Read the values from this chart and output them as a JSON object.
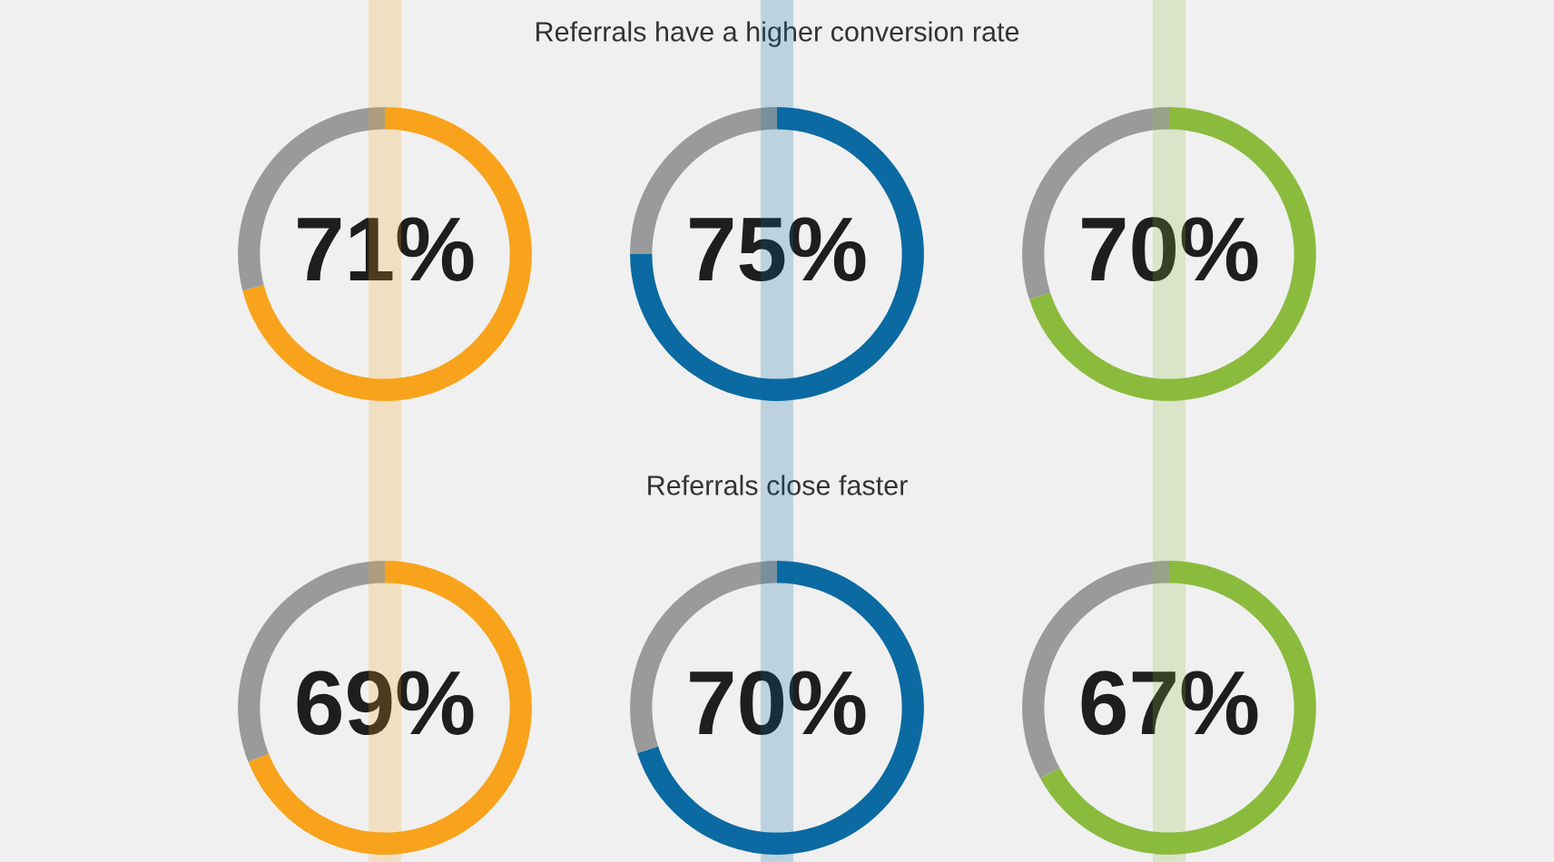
{
  "chart_data": [
    {
      "type": "donut",
      "categories": [
        null,
        null
      ],
      "values": [
        71,
        29
      ],
      "colors": [
        "#f8a31b",
        "#9a9a9a"
      ],
      "value_labels": [
        "71%",
        null
      ]
    },
    {
      "type": "donut",
      "title": "Referrals have a higher conversion rate",
      "categories": [
        null,
        null
      ],
      "values": [
        75,
        25
      ],
      "colors": [
        "#0b6aa2",
        "#9a9a9a"
      ],
      "value_labels": [
        "75%",
        null
      ]
    },
    {
      "type": "donut",
      "categories": [
        null,
        null
      ],
      "values": [
        70,
        30
      ],
      "colors": [
        "#8bbb3d",
        "#9a9a9a"
      ],
      "value_labels": [
        "70%",
        null
      ]
    },
    {
      "type": "donut",
      "categories": [
        null,
        null
      ],
      "values": [
        69,
        31
      ],
      "colors": [
        "#f8a31b",
        "#9a9a9a"
      ],
      "value_labels": [
        "69%",
        null
      ]
    },
    {
      "type": "donut",
      "title": "Referrals close faster",
      "categories": [
        null,
        null
      ],
      "values": [
        70,
        30
      ],
      "colors": [
        "#0b6aa2",
        "#9a9a9a"
      ],
      "value_labels": [
        "70%",
        null
      ]
    },
    {
      "type": "donut",
      "categories": [
        null,
        null
      ],
      "values": [
        67,
        33
      ],
      "colors": [
        "#8bbb3d",
        "#9a9a9a"
      ],
      "value_labels": [
        "67%",
        null
      ]
    }
  ]
}
